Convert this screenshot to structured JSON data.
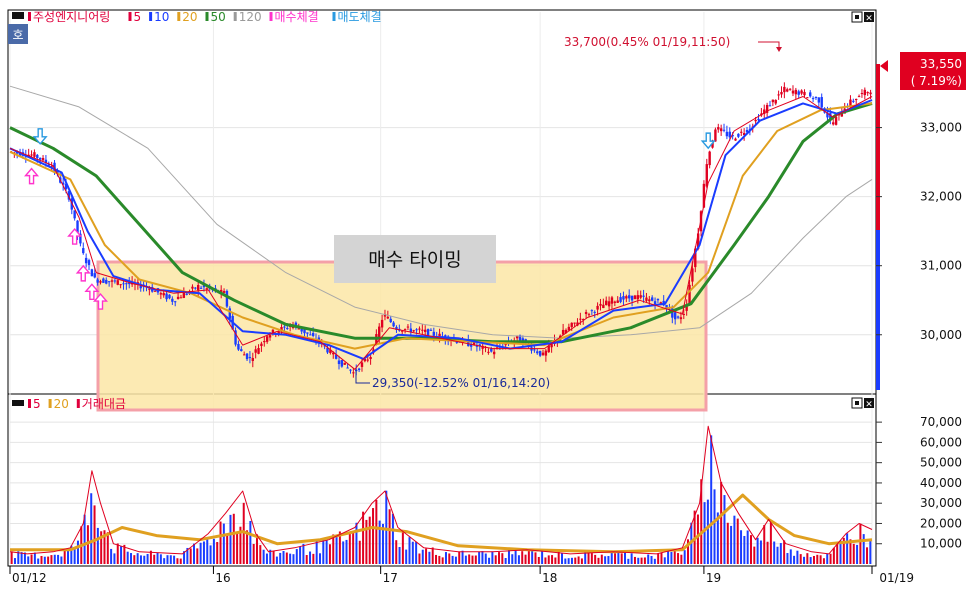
{
  "chart_data": [
    {
      "type": "candlestick",
      "panel": "price",
      "legend": [
        {
          "label": "주성엔지니어링",
          "color": "#e0003c"
        },
        {
          "label": "5",
          "color": "#e0003c"
        },
        {
          "label": "10",
          "color": "#1a3cff"
        },
        {
          "label": "20",
          "color": "#e0a020"
        },
        {
          "label": "50",
          "color": "#2a8a2a"
        },
        {
          "label": "120",
          "color": "#9a9a9a"
        },
        {
          "label": "매수체결",
          "color": "#ff33cc"
        },
        {
          "label": "매도체결",
          "color": "#2a9ae0"
        }
      ],
      "corner_badge": "호",
      "ylim": [
        29200,
        34500
      ],
      "yticks": [
        30000,
        31000,
        32000,
        33000
      ],
      "ytick_labels": [
        "30,000",
        "31,000",
        "32,000",
        "33,000"
      ],
      "current_price_label": "33,550",
      "current_change_label": "( 7.19%)",
      "current_price": 33550,
      "high_annotation": "33,700(0.45% 01/19,11:50)",
      "low_annotation": "29,350(-12.52% 01/16,14:20)",
      "high": 33700,
      "low": 29350,
      "highlight_box_label": "매수 타이밍",
      "price_path": [
        [
          0,
          32650
        ],
        [
          0.03,
          32600
        ],
        [
          0.05,
          32450
        ],
        [
          0.07,
          32000
        ],
        [
          0.085,
          31200
        ],
        [
          0.1,
          30800
        ],
        [
          0.13,
          30750
        ],
        [
          0.16,
          30700
        ],
        [
          0.19,
          30500
        ],
        [
          0.22,
          30700
        ],
        [
          0.25,
          30600
        ],
        [
          0.265,
          29800
        ],
        [
          0.28,
          29650
        ],
        [
          0.3,
          30000
        ],
        [
          0.33,
          30150
        ],
        [
          0.36,
          29900
        ],
        [
          0.385,
          29600
        ],
        [
          0.4,
          29450
        ],
        [
          0.42,
          29700
        ],
        [
          0.435,
          30300
        ],
        [
          0.45,
          30100
        ],
        [
          0.48,
          30050
        ],
        [
          0.51,
          29950
        ],
        [
          0.54,
          29850
        ],
        [
          0.56,
          29750
        ],
        [
          0.59,
          29950
        ],
        [
          0.62,
          29700
        ],
        [
          0.64,
          30000
        ],
        [
          0.67,
          30300
        ],
        [
          0.7,
          30500
        ],
        [
          0.73,
          30550
        ],
        [
          0.76,
          30450
        ],
        [
          0.775,
          30200
        ],
        [
          0.785,
          30350
        ],
        [
          0.8,
          31500
        ],
        [
          0.81,
          32500
        ],
        [
          0.82,
          33000
        ],
        [
          0.84,
          32850
        ],
        [
          0.86,
          33000
        ],
        [
          0.88,
          33300
        ],
        [
          0.9,
          33550
        ],
        [
          0.92,
          33500
        ],
        [
          0.94,
          33400
        ],
        [
          0.955,
          33050
        ],
        [
          0.97,
          33300
        ],
        [
          0.985,
          33450
        ],
        [
          1.0,
          33550
        ]
      ],
      "ma5_path": [
        [
          0,
          32700
        ],
        [
          0.05,
          32450
        ],
        [
          0.08,
          31700
        ],
        [
          0.1,
          30900
        ],
        [
          0.14,
          30750
        ],
        [
          0.19,
          30600
        ],
        [
          0.23,
          30650
        ],
        [
          0.27,
          29850
        ],
        [
          0.31,
          30050
        ],
        [
          0.36,
          29900
        ],
        [
          0.4,
          29500
        ],
        [
          0.44,
          30100
        ],
        [
          0.5,
          29950
        ],
        [
          0.56,
          29800
        ],
        [
          0.62,
          29800
        ],
        [
          0.67,
          30250
        ],
        [
          0.73,
          30500
        ],
        [
          0.78,
          30300
        ],
        [
          0.81,
          32200
        ],
        [
          0.84,
          32950
        ],
        [
          0.88,
          33250
        ],
        [
          0.92,
          33450
        ],
        [
          0.955,
          33150
        ],
        [
          1.0,
          33450
        ]
      ],
      "ma10_path": [
        [
          0,
          32700
        ],
        [
          0.06,
          32350
        ],
        [
          0.09,
          31500
        ],
        [
          0.12,
          30850
        ],
        [
          0.17,
          30650
        ],
        [
          0.22,
          30600
        ],
        [
          0.27,
          30050
        ],
        [
          0.32,
          30000
        ],
        [
          0.37,
          29850
        ],
        [
          0.41,
          29650
        ],
        [
          0.45,
          30000
        ],
        [
          0.52,
          29950
        ],
        [
          0.58,
          29800
        ],
        [
          0.64,
          29900
        ],
        [
          0.7,
          30350
        ],
        [
          0.76,
          30450
        ],
        [
          0.8,
          31300
        ],
        [
          0.83,
          32600
        ],
        [
          0.87,
          33100
        ],
        [
          0.92,
          33350
        ],
        [
          0.96,
          33200
        ],
        [
          1.0,
          33400
        ]
      ],
      "ma20_path": [
        [
          0,
          32650
        ],
        [
          0.07,
          32250
        ],
        [
          0.11,
          31300
        ],
        [
          0.15,
          30800
        ],
        [
          0.21,
          30600
        ],
        [
          0.27,
          30250
        ],
        [
          0.33,
          30000
        ],
        [
          0.4,
          29800
        ],
        [
          0.46,
          29950
        ],
        [
          0.54,
          29900
        ],
        [
          0.62,
          29850
        ],
        [
          0.7,
          30250
        ],
        [
          0.77,
          30400
        ],
        [
          0.81,
          30900
        ],
        [
          0.85,
          32300
        ],
        [
          0.89,
          32950
        ],
        [
          0.94,
          33250
        ],
        [
          1.0,
          33350
        ]
      ],
      "ma50_path": [
        [
          0,
          33000
        ],
        [
          0.05,
          32700
        ],
        [
          0.1,
          32300
        ],
        [
          0.15,
          31600
        ],
        [
          0.2,
          30900
        ],
        [
          0.26,
          30500
        ],
        [
          0.32,
          30150
        ],
        [
          0.4,
          29950
        ],
        [
          0.48,
          29950
        ],
        [
          0.56,
          29900
        ],
        [
          0.64,
          29900
        ],
        [
          0.72,
          30100
        ],
        [
          0.79,
          30450
        ],
        [
          0.84,
          31300
        ],
        [
          0.88,
          32000
        ],
        [
          0.92,
          32800
        ],
        [
          0.96,
          33200
        ],
        [
          1.0,
          33350
        ]
      ],
      "ma120_path": [
        [
          0,
          33600
        ],
        [
          0.08,
          33300
        ],
        [
          0.16,
          32700
        ],
        [
          0.24,
          31600
        ],
        [
          0.32,
          30900
        ],
        [
          0.4,
          30400
        ],
        [
          0.48,
          30150
        ],
        [
          0.56,
          30000
        ],
        [
          0.64,
          29950
        ],
        [
          0.72,
          30000
        ],
        [
          0.8,
          30100
        ],
        [
          0.86,
          30600
        ],
        [
          0.92,
          31400
        ],
        [
          0.97,
          32000
        ],
        [
          1.0,
          32250
        ]
      ],
      "buy_marker_positions": [
        0.025,
        0.075,
        0.085,
        0.095,
        0.105
      ],
      "sell_marker_positions": [
        0.035,
        0.81
      ]
    },
    {
      "type": "bar",
      "panel": "volume",
      "legend": [
        {
          "label": "5",
          "color": "#e0003c"
        },
        {
          "label": "20",
          "color": "#e0a020"
        },
        {
          "label": "거래대금",
          "color": "#e0003c"
        }
      ],
      "ylim": [
        0,
        75000
      ],
      "yticks": [
        10000,
        20000,
        30000,
        40000,
        50000,
        60000,
        70000
      ],
      "ytick_labels": [
        "10,000",
        "20,000",
        "30,000",
        "40,000",
        "50,000",
        "60,000",
        "70,000"
      ],
      "volume_path": [
        [
          0,
          6000
        ],
        [
          0.02,
          5000
        ],
        [
          0.05,
          6000
        ],
        [
          0.07,
          8000
        ],
        [
          0.085,
          20000
        ],
        [
          0.095,
          46000
        ],
        [
          0.105,
          30000
        ],
        [
          0.12,
          10000
        ],
        [
          0.15,
          6000
        ],
        [
          0.2,
          5000
        ],
        [
          0.23,
          15000
        ],
        [
          0.25,
          25000
        ],
        [
          0.27,
          36000
        ],
        [
          0.285,
          15000
        ],
        [
          0.3,
          6000
        ],
        [
          0.33,
          8000
        ],
        [
          0.37,
          12000
        ],
        [
          0.4,
          18000
        ],
        [
          0.42,
          30000
        ],
        [
          0.435,
          36000
        ],
        [
          0.45,
          18000
        ],
        [
          0.48,
          8000
        ],
        [
          0.52,
          6000
        ],
        [
          0.56,
          6000
        ],
        [
          0.6,
          7000
        ],
        [
          0.65,
          5000
        ],
        [
          0.7,
          6000
        ],
        [
          0.75,
          5000
        ],
        [
          0.78,
          8000
        ],
        [
          0.8,
          30000
        ],
        [
          0.81,
          68000
        ],
        [
          0.825,
          40000
        ],
        [
          0.845,
          25000
        ],
        [
          0.865,
          12000
        ],
        [
          0.88,
          22000
        ],
        [
          0.9,
          10000
        ],
        [
          0.93,
          6000
        ],
        [
          0.95,
          5000
        ],
        [
          0.97,
          15000
        ],
        [
          0.985,
          20000
        ],
        [
          1.0,
          17000
        ]
      ],
      "ma20_volume_path": [
        [
          0,
          7000
        ],
        [
          0.07,
          7000
        ],
        [
          0.1,
          12000
        ],
        [
          0.13,
          18000
        ],
        [
          0.17,
          14000
        ],
        [
          0.22,
          12000
        ],
        [
          0.27,
          16000
        ],
        [
          0.31,
          10000
        ],
        [
          0.36,
          12000
        ],
        [
          0.42,
          18000
        ],
        [
          0.46,
          16000
        ],
        [
          0.52,
          9000
        ],
        [
          0.6,
          7000
        ],
        [
          0.7,
          6000
        ],
        [
          0.78,
          7000
        ],
        [
          0.82,
          22000
        ],
        [
          0.85,
          34000
        ],
        [
          0.88,
          22000
        ],
        [
          0.91,
          14000
        ],
        [
          0.95,
          10000
        ],
        [
          1.0,
          12000
        ]
      ]
    }
  ],
  "x_axis": {
    "labels": [
      {
        "label": "01/12",
        "position": 0.0
      },
      {
        "label": "16",
        "position": 0.236
      },
      {
        "label": "17",
        "position": 0.43
      },
      {
        "label": "18",
        "position": 0.615
      },
      {
        "label": "19",
        "position": 0.805
      },
      {
        "label": "01/19",
        "position": 1.0
      }
    ]
  },
  "window_controls": {
    "restore_glyph": "▣",
    "close_glyph": "✕"
  }
}
